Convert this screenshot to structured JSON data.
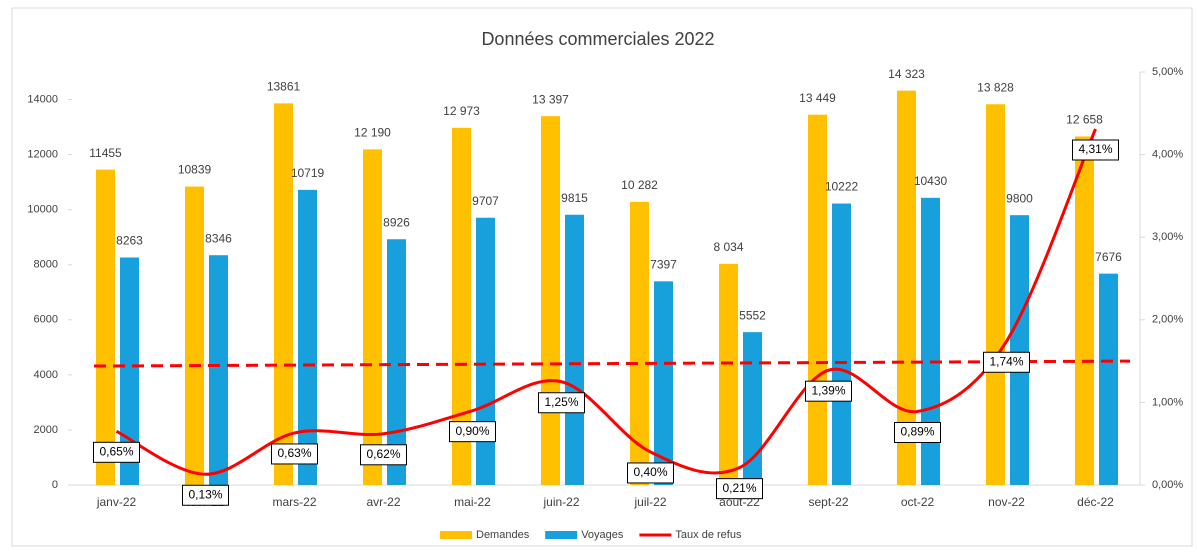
{
  "chart_data": {
    "type": "bar-line",
    "title": "Données commerciales 2022",
    "categories": [
      "janv-22",
      "févr-22",
      "mars-22",
      "avr-22",
      "mai-22",
      "juin-22",
      "juil-22",
      "août-22",
      "sept-22",
      "oct-22",
      "nov-22",
      "déc-22"
    ],
    "series": [
      {
        "name": "Demandes",
        "type": "bar",
        "color": "#FFC000",
        "values": [
          11455,
          10839,
          13861,
          12190,
          12973,
          13397,
          10282,
          8034,
          13449,
          14323,
          13828,
          12658
        ],
        "value_labels": [
          "11455",
          "10839",
          "13861",
          "12 190",
          "12 973",
          "13 397",
          "10 282",
          "8 034",
          "13 449",
          "14 323",
          "13 828",
          "12 658"
        ]
      },
      {
        "name": "Voyages",
        "type": "bar",
        "color": "#17A0DB",
        "values": [
          8263,
          8346,
          10719,
          8926,
          9707,
          9815,
          7397,
          5552,
          10222,
          10430,
          9800,
          7676
        ]
      },
      {
        "name": "Taux de refus",
        "type": "line",
        "axis": "y2",
        "color": "#FF0000",
        "values": [
          0.65,
          0.13,
          0.63,
          0.62,
          0.9,
          1.25,
          0.4,
          0.21,
          1.39,
          0.89,
          1.74,
          4.31
        ],
        "value_labels": [
          "0,65%",
          "0,13%",
          "0,63%",
          "0,62%",
          "0,90%",
          "1,25%",
          "0,40%",
          "0,21%",
          "1,39%",
          "0,89%",
          "1,74%",
          "4,31%"
        ]
      }
    ],
    "trendline": {
      "axis": "y2",
      "color": "#FF0000",
      "values": [
        1.44,
        1.5
      ]
    },
    "ylim": [
      0,
      15000
    ],
    "yticks": [
      0,
      2000,
      4000,
      6000,
      8000,
      10000,
      12000,
      14000
    ],
    "y2lim": [
      0,
      5
    ],
    "y2ticks": [
      {
        "value": 0,
        "label": "0,00%"
      },
      {
        "value": 1,
        "label": "1,00%"
      },
      {
        "value": 2,
        "label": "2,00%"
      },
      {
        "value": 3,
        "label": "3,00%"
      },
      {
        "value": 4,
        "label": "4,00%"
      },
      {
        "value": 5,
        "label": "5,00%"
      }
    ],
    "legend": "bottom"
  }
}
